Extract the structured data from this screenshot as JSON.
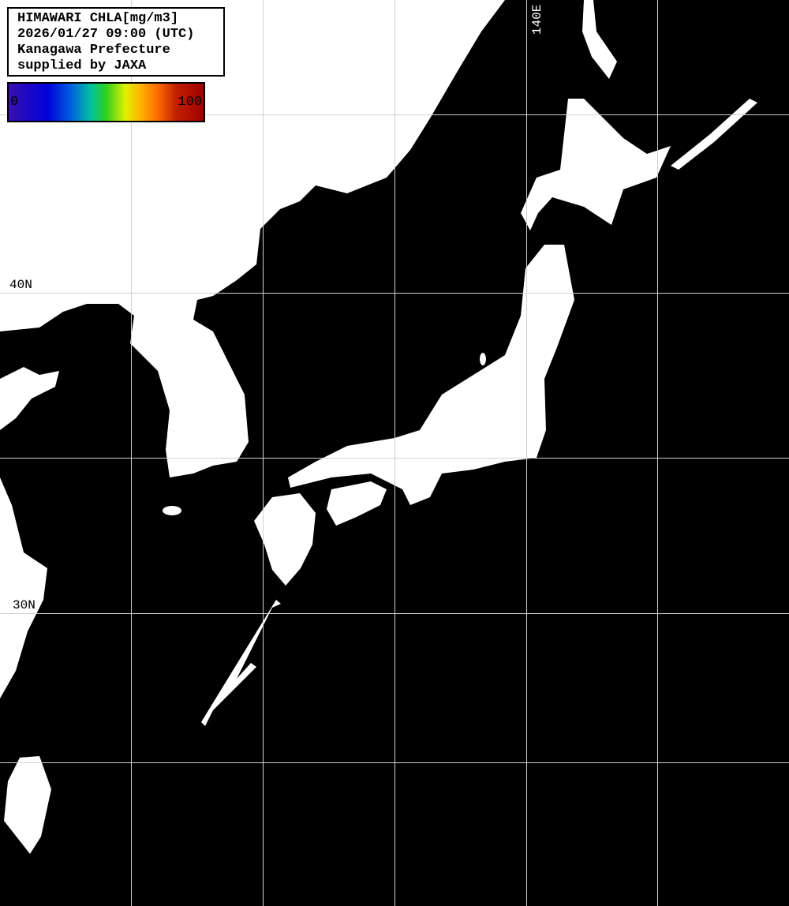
{
  "header": {
    "lines": [
      "HIMAWARI CHLA[mg/m3]",
      "2026/01/27 09:00 (UTC)",
      "Kanagawa Prefecture",
      "supplied by JAXA"
    ]
  },
  "colorbar": {
    "min_label": "0",
    "max_label": "100",
    "colors": [
      "#3a10b0",
      "#0000d8",
      "#0060e0",
      "#00c0a0",
      "#30d020",
      "#e0f000",
      "#ffb000",
      "#ff7000",
      "#c02000",
      "#a00000"
    ]
  },
  "grid": {
    "lat_labels": [
      "40N",
      "30N"
    ],
    "lon_labels": [
      "140E"
    ],
    "line_color": "#d0d0d0"
  },
  "colors": {
    "land": "#ffffff",
    "no_data": "#000000"
  }
}
